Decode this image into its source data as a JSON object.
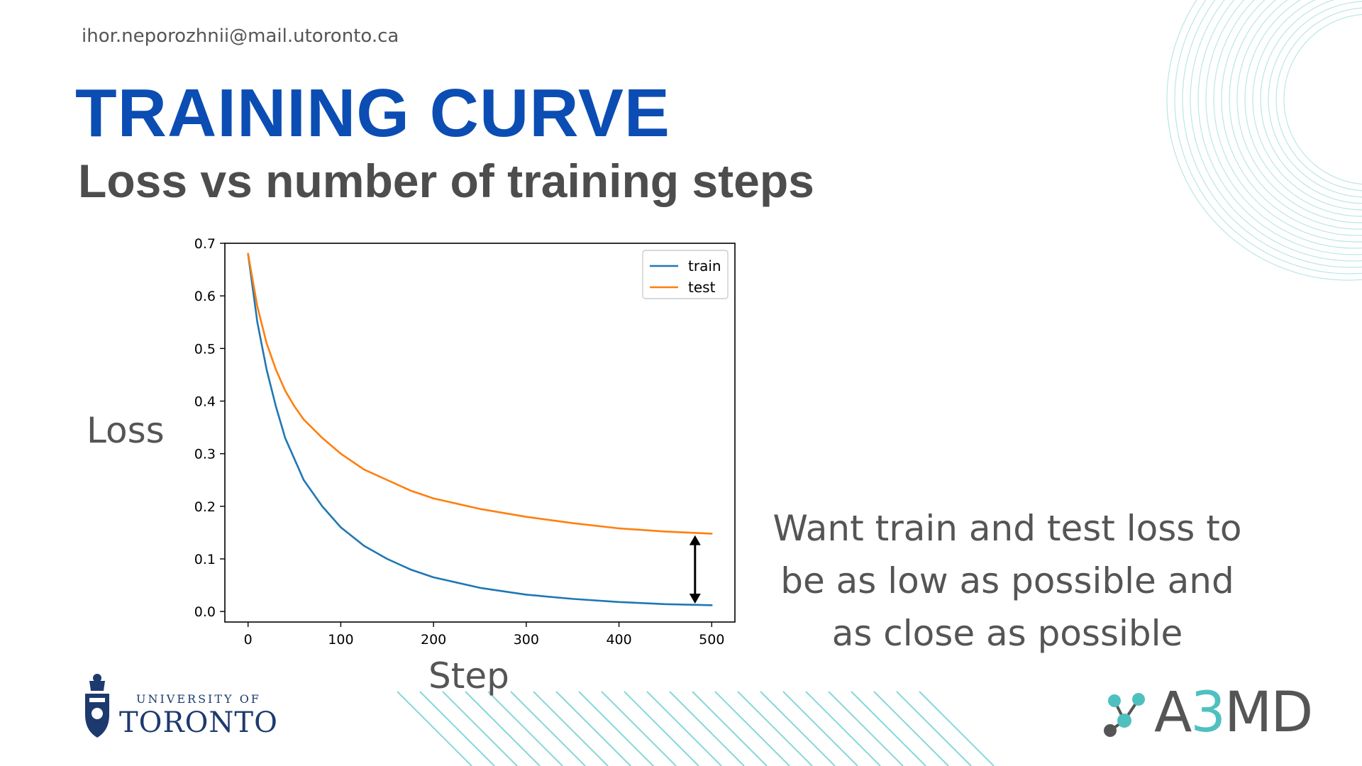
{
  "header": {
    "email": "ihor.neporozhnii@mail.utoronto.ca",
    "title": "TRAINING CURVE",
    "subtitle": "Loss vs number of training steps"
  },
  "labels": {
    "y_axis": "Loss",
    "x_axis": "Step"
  },
  "note": "Want train and test loss to be as low as possible and as close as possible",
  "logos": {
    "uoft_small": "UNIVERSITY OF",
    "uoft_big": "TORONTO",
    "a3md_prefix": "A",
    "a3md_accent": "3",
    "a3md_suffix": "MD"
  },
  "colors": {
    "title": "#0b4db3",
    "train": "#1f77b4",
    "test": "#ff7f0e",
    "accent": "#4fc0c0"
  },
  "chart_data": {
    "type": "line",
    "title": "",
    "xlabel": "Step",
    "ylabel": "Loss",
    "xlim": [
      -25,
      525
    ],
    "ylim": [
      -0.02,
      0.7
    ],
    "xticks": [
      0,
      100,
      200,
      300,
      400,
      500
    ],
    "yticks": [
      0.0,
      0.1,
      0.2,
      0.3,
      0.4,
      0.5,
      0.6,
      0.7
    ],
    "legend": "top-right",
    "grid": false,
    "x": [
      0,
      10,
      20,
      30,
      40,
      50,
      60,
      80,
      100,
      125,
      150,
      175,
      200,
      250,
      300,
      350,
      400,
      450,
      500
    ],
    "series": [
      {
        "name": "train",
        "color": "#1f77b4",
        "values": [
          0.68,
          0.55,
          0.46,
          0.39,
          0.33,
          0.29,
          0.25,
          0.2,
          0.16,
          0.125,
          0.1,
          0.08,
          0.065,
          0.045,
          0.032,
          0.024,
          0.018,
          0.014,
          0.012
        ]
      },
      {
        "name": "test",
        "color": "#ff7f0e",
        "values": [
          0.68,
          0.58,
          0.51,
          0.46,
          0.42,
          0.39,
          0.365,
          0.33,
          0.3,
          0.27,
          0.25,
          0.23,
          0.215,
          0.195,
          0.18,
          0.168,
          0.158,
          0.152,
          0.148
        ]
      }
    ],
    "annotation": {
      "type": "double-arrow",
      "x": 482,
      "y_from": 0.015,
      "y_to": 0.145
    }
  }
}
